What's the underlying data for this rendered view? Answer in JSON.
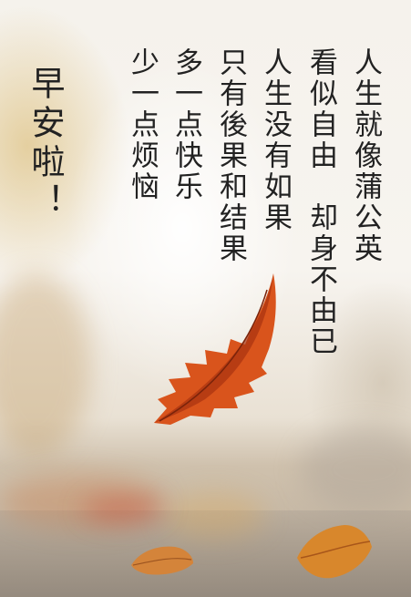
{
  "poem": {
    "title": "早安啦！",
    "lines": [
      "人生就像蒲公英",
      "看似自由　却身不由已",
      "人生没有如果",
      "只有後果和结果",
      "多一点快乐",
      "少一点烦恼"
    ]
  },
  "colors": {
    "text": "#222222",
    "leaf_main": "#d9541c",
    "leaf_shadow": "#a8320f"
  }
}
